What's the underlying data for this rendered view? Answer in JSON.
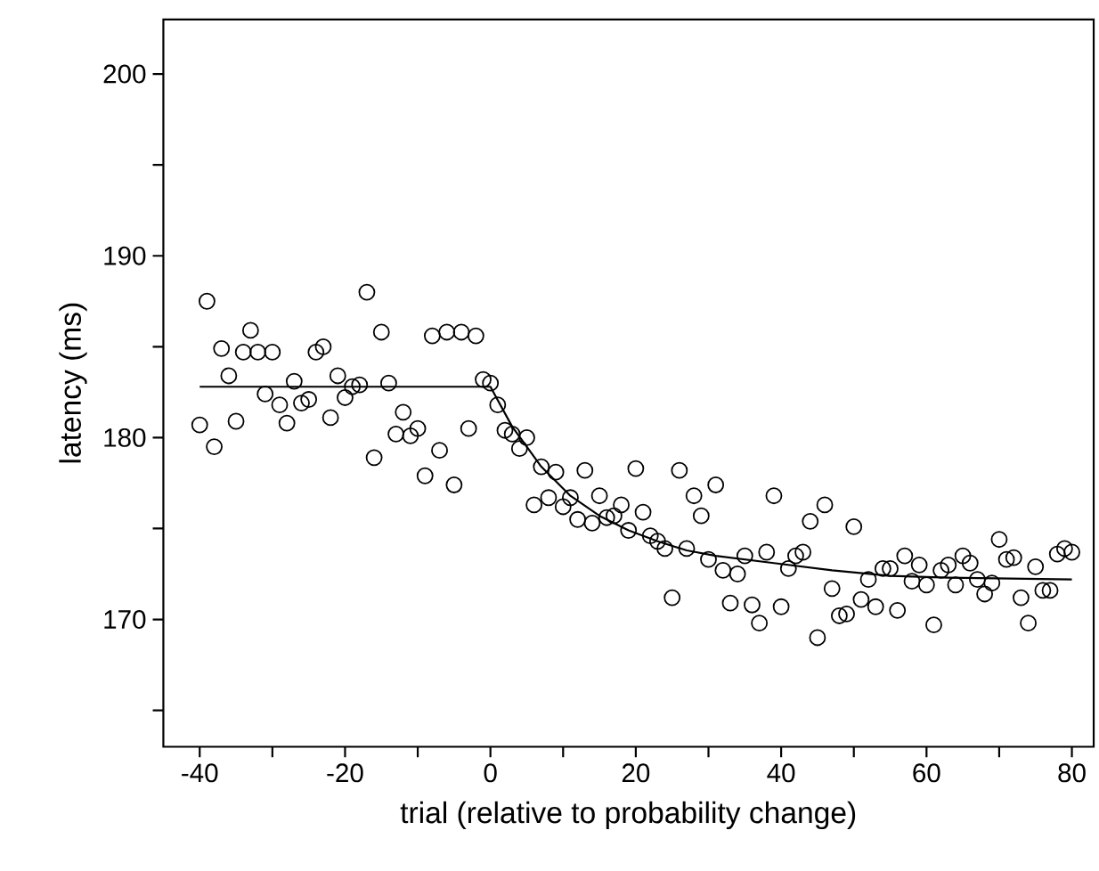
{
  "chart_data": {
    "type": "scatter",
    "xlabel": "trial (relative to probability change)",
    "ylabel": "latency (ms)",
    "xlim": [
      -45,
      83
    ],
    "ylim": [
      163,
      203
    ],
    "xticks": [
      -40,
      {
        "value": -30,
        "label": null
      },
      -20,
      {
        "value": -10,
        "label": null
      },
      0,
      {
        "value": 10,
        "label": null
      },
      20,
      {
        "value": 30,
        "label": null
      },
      40,
      {
        "value": 50,
        "label": null
      },
      60,
      {
        "value": 70,
        "label": null
      },
      80
    ],
    "yticks": [
      {
        "value": 165,
        "label": null
      },
      170,
      {
        "value": 175,
        "label": null
      },
      180,
      {
        "value": 185,
        "label": null
      },
      190,
      {
        "value": 195,
        "label": null
      },
      200
    ],
    "marker": "circle",
    "series": [
      {
        "color": "#000000",
        "x": [
          -40,
          -39,
          -38,
          -37,
          -36,
          -35,
          -34,
          -33,
          -32,
          -31,
          -30,
          -29,
          -28,
          -27,
          -26,
          -25,
          -24,
          -23,
          -22,
          -21,
          -20,
          -19,
          -18,
          -17,
          -16,
          -15,
          -14,
          -13,
          -12,
          -11,
          -10,
          -9,
          -8,
          -7,
          -6,
          -5,
          -4,
          -3,
          -2,
          -1,
          0,
          1,
          2,
          3,
          4,
          5,
          6,
          7,
          8,
          9,
          10,
          11,
          12,
          13,
          14,
          15,
          16,
          17,
          18,
          19,
          20,
          21,
          22,
          23,
          24,
          25,
          26,
          27,
          28,
          29,
          30,
          31,
          32,
          33,
          34,
          35,
          36,
          37,
          38,
          39,
          40,
          41,
          42,
          43,
          44,
          45,
          46,
          47,
          48,
          49,
          50,
          51,
          52,
          53,
          54,
          55,
          56,
          57,
          58,
          59,
          60,
          61,
          62,
          63,
          64,
          65,
          66,
          67,
          68,
          69,
          70,
          71,
          72,
          73,
          74,
          75,
          76,
          77,
          78,
          79,
          80
        ],
        "values": [
          180.7,
          187.5,
          179.5,
          184.9,
          183.4,
          180.9,
          184.7,
          185.9,
          184.7,
          182.4,
          184.7,
          181.8,
          180.8,
          183.1,
          181.9,
          182.1,
          184.7,
          185.0,
          181.1,
          183.4,
          182.2,
          182.8,
          182.9,
          188.0,
          178.9,
          185.8,
          183.0,
          180.2,
          181.4,
          180.1,
          180.5,
          177.9,
          185.6,
          179.3,
          185.8,
          177.4,
          185.8,
          180.5,
          185.6,
          183.2,
          183.0,
          181.8,
          180.4,
          180.2,
          179.4,
          180.0,
          176.3,
          178.4,
          176.7,
          178.1,
          176.2,
          176.7,
          175.5,
          178.2,
          175.3,
          176.8,
          175.6,
          175.7,
          176.3,
          174.9,
          178.3,
          175.9,
          174.6,
          174.3,
          173.9,
          171.2,
          178.2,
          173.9,
          176.8,
          175.7,
          173.3,
          177.4,
          172.7,
          170.9,
          172.5,
          173.5,
          170.8,
          169.8,
          173.7,
          176.8,
          170.7,
          172.8,
          173.5,
          173.7,
          175.4,
          169.0,
          176.3,
          171.7,
          170.2,
          170.3,
          175.1,
          171.1,
          172.2,
          170.7,
          172.8,
          172.8,
          170.5,
          173.5,
          172.1,
          173.0,
          171.9,
          169.7,
          172.7,
          173.0,
          171.9,
          173.5,
          173.1,
          172.2,
          171.4,
          172.0,
          174.4,
          173.3,
          173.4,
          171.2,
          169.8,
          172.9,
          171.6,
          171.6,
          173.6,
          173.9,
          173.7
        ]
      },
      {
        "type": "line",
        "color": "#000000",
        "marker": "none",
        "x": [
          -40,
          0,
          3,
          7,
          11,
          15,
          19,
          23,
          27,
          31,
          39,
          47,
          55,
          63,
          80
        ],
        "values": [
          182.8,
          182.8,
          180.6,
          178.4,
          176.8,
          175.7,
          174.9,
          174.3,
          173.8,
          173.5,
          173.1,
          172.7,
          172.4,
          172.3,
          172.2
        ]
      }
    ]
  }
}
